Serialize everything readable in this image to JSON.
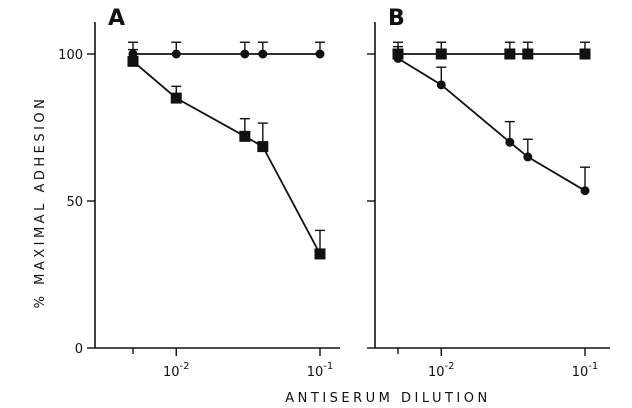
{
  "chart_data": [
    {
      "type": "line",
      "panel": "A",
      "xscale": "log",
      "x": [
        0.005,
        0.01,
        0.03,
        0.04,
        0.1
      ],
      "series": [
        {
          "marker": "circle",
          "values": [
            100,
            100,
            100,
            100,
            100
          ],
          "error": [
            4,
            4,
            4,
            4,
            4
          ]
        },
        {
          "marker": "square",
          "values": [
            97.5,
            85,
            72,
            68.5,
            32
          ],
          "error": [
            4,
            4,
            6,
            8,
            8
          ]
        }
      ],
      "xlim": [
        0.005,
        0.1
      ],
      "ylim": [
        0,
        100
      ],
      "yticks": [
        0,
        50,
        100
      ],
      "ytick_labels": [
        "0",
        "50",
        "100"
      ],
      "xticks": [
        0.01,
        0.1
      ],
      "xtick_labels": [
        {
          "base": "10",
          "exp": "-2"
        },
        {
          "base": "10",
          "exp": "-1"
        }
      ]
    },
    {
      "type": "line",
      "panel": "B",
      "xscale": "log",
      "x": [
        0.005,
        0.01,
        0.03,
        0.04,
        0.1
      ],
      "series": [
        {
          "marker": "square",
          "values": [
            100,
            100,
            100,
            100,
            100
          ],
          "error": [
            4,
            4,
            4,
            4,
            4
          ]
        },
        {
          "marker": "circle",
          "values": [
            98.5,
            89.5,
            70,
            65,
            53.5
          ],
          "error": [
            4,
            6,
            7,
            6,
            8
          ]
        }
      ],
      "xlim": [
        0.005,
        0.1
      ],
      "ylim": [
        0,
        100
      ],
      "xticks": [
        0.01,
        0.1
      ],
      "xtick_labels": [
        {
          "base": "10",
          "exp": "-2"
        },
        {
          "base": "10",
          "exp": "-1"
        }
      ]
    }
  ],
  "figure": {
    "ylabel": "% MAXIMAL ADHESION",
    "xlabel": "ANTISERUM DILUTION"
  }
}
